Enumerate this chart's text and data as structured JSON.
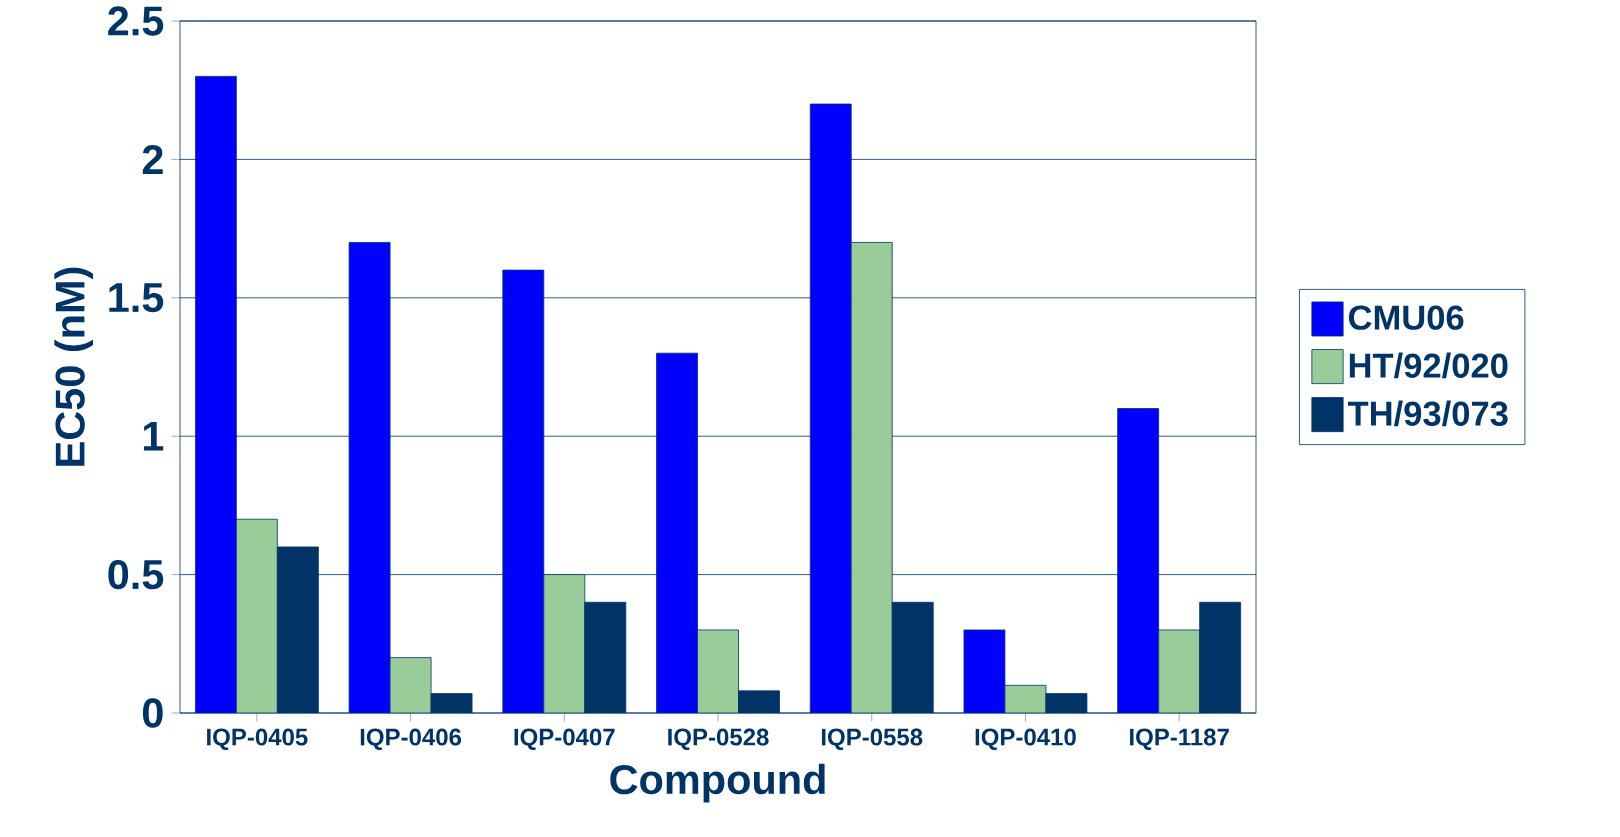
{
  "chart_data": {
    "type": "bar",
    "xlabel": "Compound",
    "ylabel": "EC50 (nM)",
    "categories": [
      "IQP-0405",
      "IQP-0406",
      "IQP-0407",
      "IQP-0528",
      "IQP-0558",
      "IQP-0410",
      "IQP-1187"
    ],
    "series": [
      {
        "name": "CMU06",
        "color": "#0000ff",
        "values": [
          2.3,
          1.7,
          1.6,
          1.3,
          2.2,
          0.3,
          1.1
        ]
      },
      {
        "name": "HT/92/020",
        "color": "#99cc99",
        "values": [
          0.7,
          0.2,
          0.5,
          0.3,
          1.7,
          0.1,
          0.3
        ]
      },
      {
        "name": "TH/93/073",
        "color": "#003366",
        "values": [
          0.6,
          0.07,
          0.4,
          0.08,
          0.4,
          0.07,
          0.4
        ]
      }
    ],
    "ylim": [
      0,
      2.5
    ],
    "yticks": [
      0,
      0.5,
      1,
      1.5,
      2,
      2.5
    ],
    "grid": "y",
    "legend": "right"
  }
}
